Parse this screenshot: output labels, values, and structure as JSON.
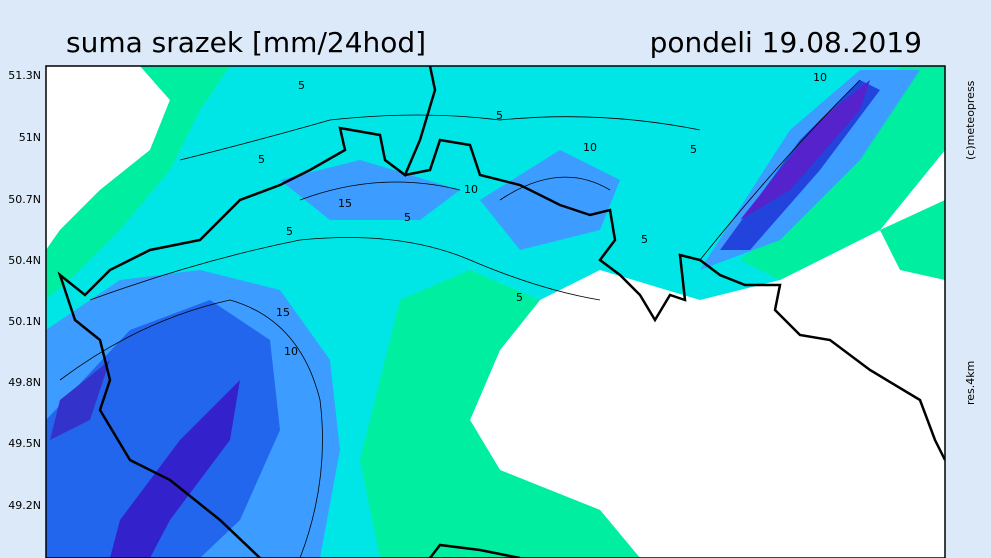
{
  "header": {
    "title": "suma srazek [mm/24hod]",
    "date": "pondeli 19.08.2019"
  },
  "latitude_labels": [
    "51.3N",
    "51N",
    "50.7N",
    "50.4N",
    "50.1N",
    "49.8N",
    "49.5N",
    "49.2N"
  ],
  "contour_labels": [
    5,
    5,
    10,
    5,
    10,
    5,
    10,
    15,
    5,
    5,
    5,
    5,
    15,
    10
  ],
  "credits": {
    "copyright": "(c)meteopress",
    "resolution": "res.4km"
  }
}
